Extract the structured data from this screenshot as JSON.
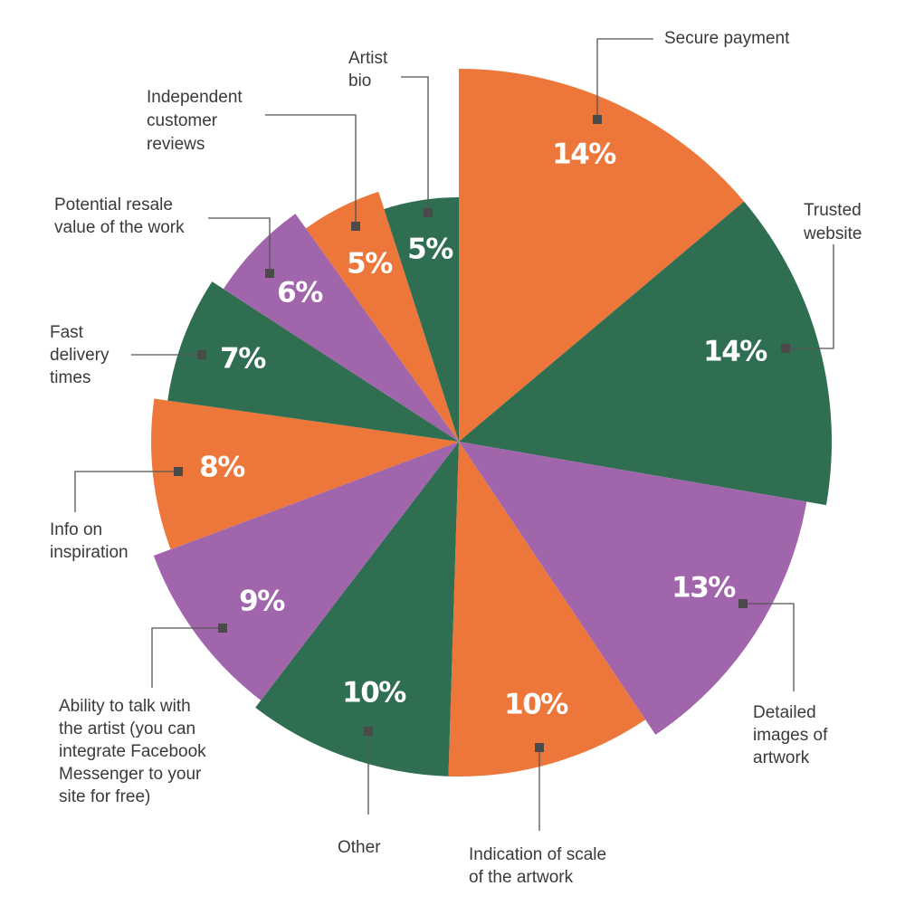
{
  "colors": {
    "orange": "#ED773B",
    "green": "#2F6E51",
    "purple": "#A165AC",
    "line": "#555555",
    "text": "#3a3a3a"
  },
  "chart_data": {
    "type": "pie",
    "title": "",
    "note": "Slices have varying radii; values shown as percentages",
    "series": [
      {
        "values": [
          {
            "category": "Secure payment",
            "value": 14,
            "label": "14%",
            "color": "orange"
          },
          {
            "category": "Trusted website",
            "value": 14,
            "label": "14%",
            "color": "green"
          },
          {
            "category": "Detailed images of artwork",
            "value": 13,
            "label": "13%",
            "color": "purple"
          },
          {
            "category": "Indication of scale of the artwork",
            "value": 10,
            "label": "10%",
            "color": "orange"
          },
          {
            "category": "Other",
            "value": 10,
            "label": "10%",
            "color": "green"
          },
          {
            "category": "Ability to talk with the artist (you can integrate Facebook Messenger to your site for free)",
            "value": 9,
            "label": "9%",
            "color": "purple"
          },
          {
            "category": "Info on inspiration",
            "value": 8,
            "label": "8%",
            "color": "orange"
          },
          {
            "category": "Fast delivery times",
            "value": 7,
            "label": "7%",
            "color": "green"
          },
          {
            "category": "Potential resale value of the work",
            "value": 6,
            "label": "6%",
            "color": "purple"
          },
          {
            "category": "Independent customer reviews",
            "value": 5,
            "label": "5%",
            "color": "orange"
          },
          {
            "category": "Artist bio",
            "value": 5,
            "label": "5%",
            "color": "green"
          }
        ]
      }
    ],
    "label_lines": [
      [
        "Secure payment"
      ],
      [
        "Trusted",
        "website"
      ],
      [
        "Detailed",
        "images of",
        "artwork"
      ],
      [
        "Indication of scale",
        "of the artwork"
      ],
      [
        "Other"
      ],
      [
        "Ability to talk with",
        "the artist (you can",
        "integrate Facebook",
        "Messenger to your",
        "site for free)"
      ],
      [
        "Info on",
        "inspiration"
      ],
      [
        "Fast",
        "delivery",
        "times"
      ],
      [
        "Potential resale",
        "value of the work"
      ],
      [
        "Independent",
        "customer",
        "reviews"
      ],
      [
        "Artist",
        "bio"
      ]
    ]
  }
}
